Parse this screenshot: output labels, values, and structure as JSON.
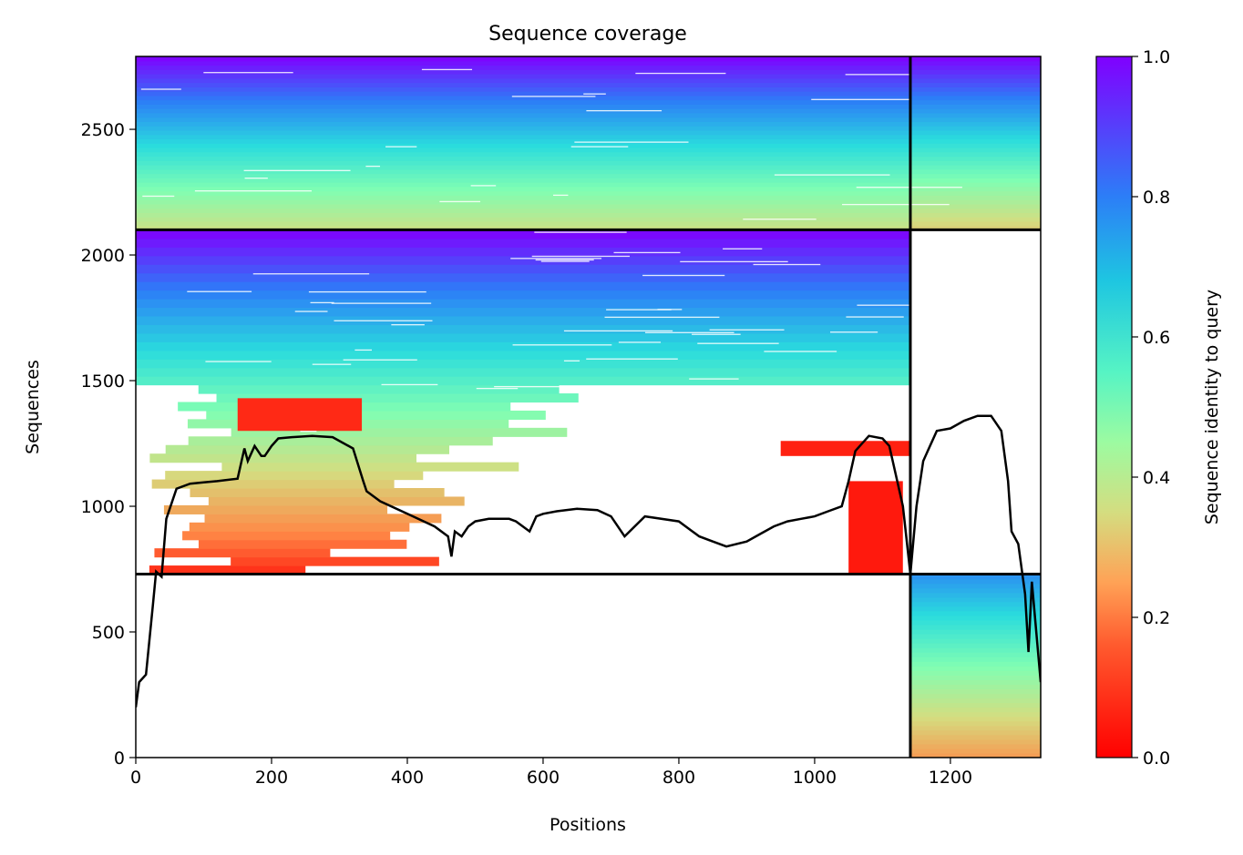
{
  "chart_data": {
    "type": "heatmap",
    "title": "Sequence coverage",
    "xlabel": "Positions",
    "ylabel": "Sequences",
    "xlim": [
      0,
      1333
    ],
    "ylim": [
      0,
      2790
    ],
    "x_ticks": [
      0,
      200,
      400,
      600,
      800,
      1000,
      1200
    ],
    "y_ticks": [
      0,
      500,
      1000,
      1500,
      2000,
      2500
    ],
    "grid": false,
    "colormap": "rainbow",
    "colorbar": {
      "label": "Sequence identity to query",
      "range": [
        0.0,
        1.0
      ],
      "ticks": [
        "0.0",
        "0.2",
        "0.4",
        "0.6",
        "0.8",
        "1.0"
      ],
      "colors": [
        "#ff0000",
        "#ff8a47",
        "#d4dd80",
        "#80feb3",
        "#2adcdd",
        "#2c7ef7",
        "#8000ff"
      ]
    },
    "block_boundaries": {
      "x": [
        1141
      ],
      "y": [
        730,
        2100
      ]
    },
    "blocks": [
      {
        "x": [
          0,
          1141
        ],
        "y": [
          2100,
          2790
        ],
        "identity_top": 1.0,
        "identity_bottom": 0.35
      },
      {
        "x": [
          1141,
          1333
        ],
        "y": [
          2100,
          2790
        ],
        "identity_top": 1.0,
        "identity_bottom": 0.3
      },
      {
        "x": [
          0,
          1141
        ],
        "y": [
          730,
          2100
        ],
        "identity_top": 1.0,
        "identity_bottom": 0.05
      },
      {
        "x": [
          1141,
          1333
        ],
        "y": [
          0,
          730
        ],
        "identity_top": 0.8,
        "identity_bottom": 0.2
      }
    ],
    "red_patches": [
      {
        "x": [
          150,
          333
        ],
        "y": [
          1300,
          1430
        ],
        "identity": 0.05
      },
      {
        "x": [
          1050,
          1130
        ],
        "y": [
          730,
          1100
        ],
        "identity": 0.03
      },
      {
        "x": [
          950,
          1141
        ],
        "y": [
          1200,
          1260
        ],
        "identity": 0.04
      }
    ],
    "coverage_line": {
      "x": [
        0,
        5,
        15,
        25,
        30,
        38,
        45,
        60,
        80,
        100,
        120,
        150,
        160,
        165,
        175,
        185,
        190,
        200,
        210,
        230,
        260,
        290,
        320,
        335,
        340,
        360,
        400,
        440,
        460,
        465,
        470,
        480,
        490,
        500,
        520,
        550,
        560,
        580,
        590,
        600,
        620,
        650,
        680,
        700,
        720,
        750,
        800,
        820,
        830,
        850,
        870,
        900,
        920,
        940,
        960,
        980,
        1000,
        1020,
        1040,
        1050,
        1060,
        1080,
        1100,
        1110,
        1130,
        1141,
        1150,
        1160,
        1180,
        1200,
        1220,
        1240,
        1260,
        1275,
        1285,
        1290,
        1300,
        1310,
        1315,
        1320,
        1333
      ],
      "y": [
        200,
        300,
        330,
        600,
        740,
        720,
        950,
        1070,
        1090,
        1095,
        1100,
        1110,
        1230,
        1180,
        1240,
        1200,
        1200,
        1240,
        1270,
        1275,
        1280,
        1275,
        1230,
        1100,
        1060,
        1020,
        970,
        920,
        880,
        800,
        900,
        880,
        920,
        940,
        950,
        950,
        940,
        900,
        960,
        970,
        980,
        990,
        985,
        960,
        880,
        960,
        940,
        900,
        880,
        860,
        840,
        860,
        890,
        920,
        940,
        950,
        960,
        980,
        1000,
        1100,
        1220,
        1280,
        1270,
        1240,
        1000,
        730,
        1000,
        1180,
        1300,
        1310,
        1340,
        1360,
        1360,
        1300,
        1100,
        900,
        850,
        650,
        420,
        700,
        300
      ]
    }
  }
}
